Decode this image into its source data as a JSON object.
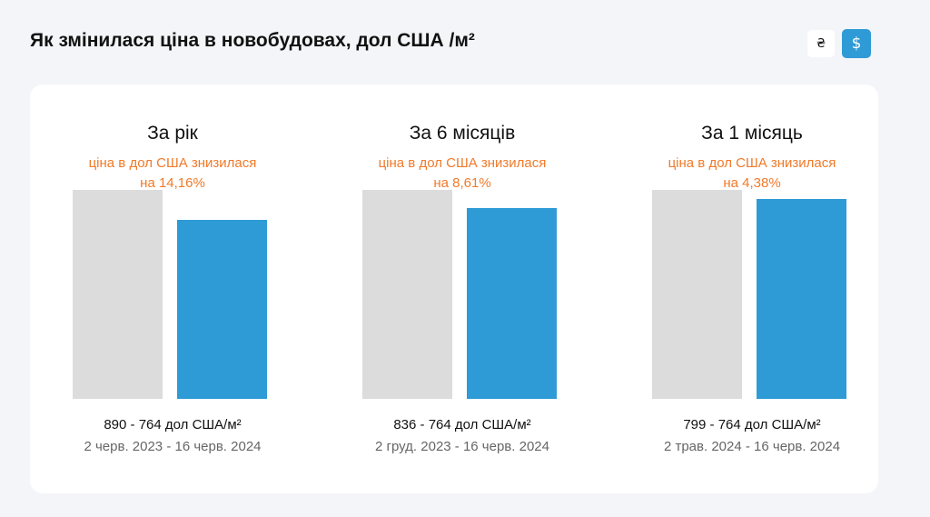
{
  "title": "Як змінилася ціна в новобудовах, дол США /м²",
  "currency_toggle": {
    "uah_symbol": "₴",
    "usd_symbol": "$",
    "selected": "usd",
    "active_color": "#2e9bd6"
  },
  "colors": {
    "old_bar": "#dcdcdc",
    "new_bar": "#2e9bd6",
    "change_text": "#f07a2a"
  },
  "chart_data": [
    {
      "type": "bar",
      "title": "За рік",
      "annotation_line1": "ціна в дол США знизилася",
      "annotation_line2": "на 14,16%",
      "categories": [
        "2 черв. 2023",
        "16 черв. 2024"
      ],
      "values": [
        890,
        764
      ],
      "values_label": "890 - 764 дол США/м²",
      "dates_label": "2 черв. 2023 - 16 черв. 2024"
    },
    {
      "type": "bar",
      "title": "За 6 місяців",
      "annotation_line1": "ціна в дол США знизилася",
      "annotation_line2": "на 8,61%",
      "categories": [
        "2 груд. 2023",
        "16 черв. 2024"
      ],
      "values": [
        836,
        764
      ],
      "values_label": "836 - 764 дол США/м²",
      "dates_label": "2 груд. 2023 - 16 черв. 2024"
    },
    {
      "type": "bar",
      "title": "За 1 місяць",
      "annotation_line1": "ціна в дол США знизилася",
      "annotation_line2": "на 4,38%",
      "categories": [
        "2 трав. 2024",
        "16 черв. 2024"
      ],
      "values": [
        799,
        764
      ],
      "values_label": "799 - 764 дол США/м²",
      "dates_label": "2 трав. 2024 - 16 черв. 2024"
    }
  ]
}
